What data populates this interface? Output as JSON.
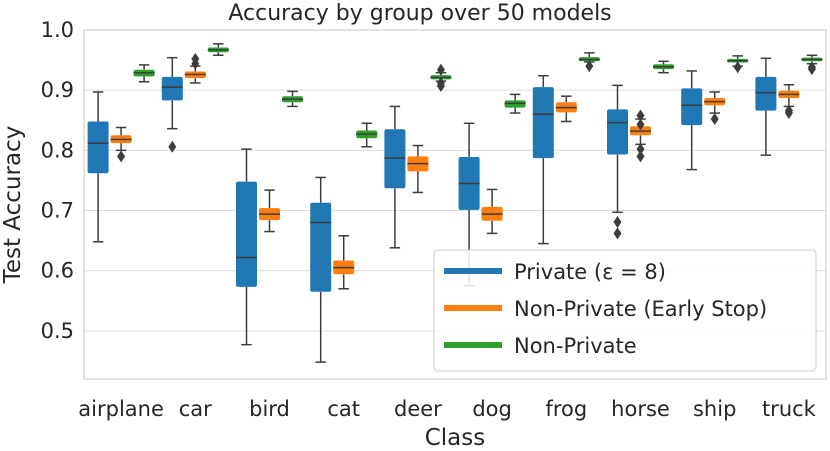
{
  "chart_data": {
    "type": "boxplot",
    "title": "Accuracy by group over 50 models",
    "xlabel": "Class",
    "ylabel": "Test Accuracy",
    "ylim": [
      0.42,
      1.0
    ],
    "yticks": [
      0.5,
      0.6,
      0.7,
      0.8,
      0.9,
      1.0
    ],
    "ytick_labels": [
      "0.5",
      "0.6",
      "0.7",
      "0.8",
      "0.9",
      "1.0"
    ],
    "grid": true,
    "legend_position": "lower-right",
    "categories": [
      "airplane",
      "car",
      "bird",
      "cat",
      "deer",
      "dog",
      "frog",
      "horse",
      "ship",
      "truck"
    ],
    "series": [
      {
        "name": "Private (ε = 8)",
        "color": "#1f77b4",
        "boxes": [
          {
            "whislo": 0.648,
            "q1": 0.762,
            "med": 0.812,
            "q3": 0.848,
            "whishi": 0.897,
            "fliers": []
          },
          {
            "whislo": 0.836,
            "q1": 0.883,
            "med": 0.905,
            "q3": 0.922,
            "whishi": 0.954,
            "fliers": [
              0.806
            ]
          },
          {
            "whislo": 0.477,
            "q1": 0.573,
            "med": 0.622,
            "q3": 0.748,
            "whishi": 0.802,
            "fliers": []
          },
          {
            "whislo": 0.448,
            "q1": 0.565,
            "med": 0.68,
            "q3": 0.713,
            "whishi": 0.755,
            "fliers": []
          },
          {
            "whislo": 0.638,
            "q1": 0.737,
            "med": 0.787,
            "q3": 0.835,
            "whishi": 0.873,
            "fliers": []
          },
          {
            "whislo": 0.575,
            "q1": 0.701,
            "med": 0.745,
            "q3": 0.789,
            "whishi": 0.845,
            "fliers": []
          },
          {
            "whislo": 0.645,
            "q1": 0.787,
            "med": 0.86,
            "q3": 0.905,
            "whishi": 0.924,
            "fliers": []
          },
          {
            "whislo": 0.697,
            "q1": 0.793,
            "med": 0.846,
            "q3": 0.868,
            "whishi": 0.908,
            "fliers": [
              0.681,
              0.662
            ]
          },
          {
            "whislo": 0.768,
            "q1": 0.842,
            "med": 0.875,
            "q3": 0.903,
            "whishi": 0.932,
            "fliers": []
          },
          {
            "whislo": 0.792,
            "q1": 0.866,
            "med": 0.896,
            "q3": 0.922,
            "whishi": 0.953,
            "fliers": []
          }
        ]
      },
      {
        "name": "Non-Private (Early Stop)",
        "color": "#ff7f0e",
        "boxes": [
          {
            "whislo": 0.8,
            "q1": 0.812,
            "med": 0.818,
            "q3": 0.825,
            "whishi": 0.838,
            "fliers": [
              0.79
            ]
          },
          {
            "whislo": 0.912,
            "q1": 0.92,
            "med": 0.926,
            "q3": 0.931,
            "whishi": 0.94,
            "fliers": [
              0.952,
              0.944
            ]
          },
          {
            "whislo": 0.665,
            "q1": 0.684,
            "med": 0.694,
            "q3": 0.704,
            "whishi": 0.734,
            "fliers": []
          },
          {
            "whislo": 0.57,
            "q1": 0.594,
            "med": 0.605,
            "q3": 0.617,
            "whishi": 0.658,
            "fliers": []
          },
          {
            "whislo": 0.73,
            "q1": 0.765,
            "med": 0.778,
            "q3": 0.79,
            "whishi": 0.808,
            "fliers": []
          },
          {
            "whislo": 0.662,
            "q1": 0.683,
            "med": 0.694,
            "q3": 0.706,
            "whishi": 0.735,
            "fliers": []
          },
          {
            "whislo": 0.848,
            "q1": 0.863,
            "med": 0.871,
            "q3": 0.88,
            "whishi": 0.89,
            "fliers": []
          },
          {
            "whislo": 0.81,
            "q1": 0.825,
            "med": 0.832,
            "q3": 0.84,
            "whishi": 0.852,
            "fliers": [
              0.858,
              0.843,
              0.802,
              0.79
            ]
          },
          {
            "whislo": 0.862,
            "q1": 0.875,
            "med": 0.881,
            "q3": 0.887,
            "whishi": 0.897,
            "fliers": [
              0.852
            ]
          },
          {
            "whislo": 0.873,
            "q1": 0.887,
            "med": 0.893,
            "q3": 0.899,
            "whishi": 0.909,
            "fliers": [
              0.866,
              0.862
            ]
          }
        ]
      },
      {
        "name": "Non-Private",
        "color": "#2ca02c",
        "boxes": [
          {
            "whislo": 0.914,
            "q1": 0.923,
            "med": 0.929,
            "q3": 0.934,
            "whishi": 0.942,
            "fliers": []
          },
          {
            "whislo": 0.958,
            "q1": 0.963,
            "med": 0.967,
            "q3": 0.971,
            "whishi": 0.977,
            "fliers": []
          },
          {
            "whislo": 0.873,
            "q1": 0.88,
            "med": 0.885,
            "q3": 0.89,
            "whishi": 0.898,
            "fliers": []
          },
          {
            "whislo": 0.806,
            "q1": 0.82,
            "med": 0.827,
            "q3": 0.833,
            "whishi": 0.845,
            "fliers": []
          },
          {
            "whislo": 0.915,
            "q1": 0.918,
            "med": 0.921,
            "q3": 0.925,
            "whishi": 0.929,
            "fliers": [
              0.934,
              0.912,
              0.907
            ]
          },
          {
            "whislo": 0.862,
            "q1": 0.871,
            "med": 0.878,
            "q3": 0.883,
            "whishi": 0.893,
            "fliers": []
          },
          {
            "whislo": 0.947,
            "q1": 0.948,
            "med": 0.951,
            "q3": 0.955,
            "whishi": 0.962,
            "fliers": [
              0.94
            ]
          },
          {
            "whislo": 0.929,
            "q1": 0.935,
            "med": 0.939,
            "q3": 0.943,
            "whishi": 0.948,
            "fliers": []
          },
          {
            "whislo": 0.94,
            "q1": 0.946,
            "med": 0.949,
            "q3": 0.952,
            "whishi": 0.957,
            "fliers": [
              0.938
            ]
          },
          {
            "whislo": 0.944,
            "q1": 0.948,
            "med": 0.951,
            "q3": 0.954,
            "whishi": 0.958,
            "fliers": [
              0.938,
              0.935
            ]
          }
        ]
      }
    ]
  }
}
